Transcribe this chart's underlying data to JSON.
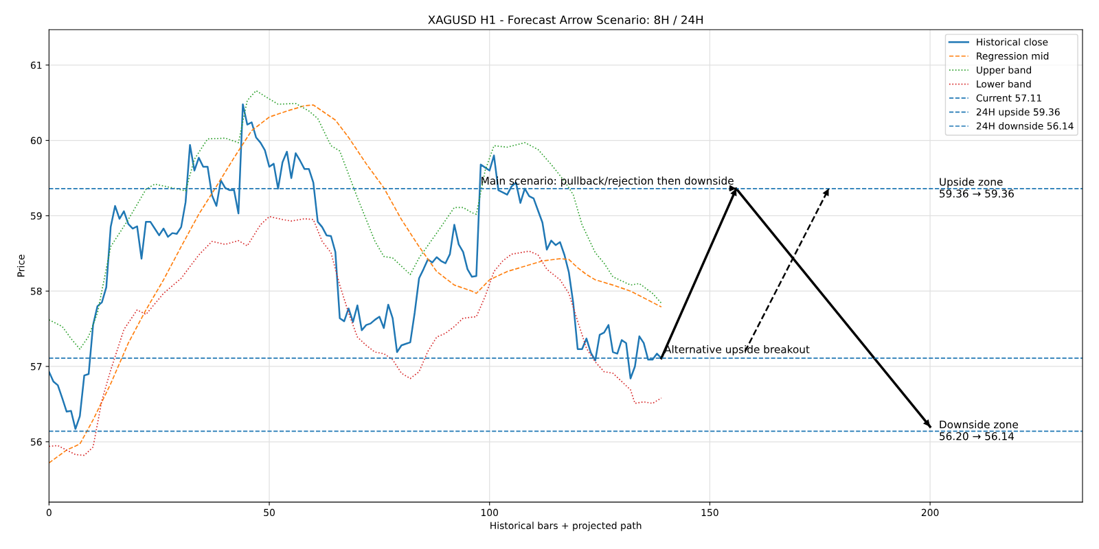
{
  "chart_data": {
    "type": "line",
    "title": "XAGUSD H1 - Forecast Arrow Scenario: 8H / 24H",
    "xlabel": "Historical bars + projected path",
    "ylabel": "Price",
    "x": [
      0,
      1,
      2,
      3,
      4,
      5,
      6,
      7,
      8,
      9,
      10,
      11,
      12,
      13,
      14,
      15,
      16,
      17,
      18,
      19,
      20,
      21,
      22,
      23,
      24,
      25,
      26,
      27,
      28,
      29,
      30,
      31,
      32,
      33,
      34,
      35,
      36,
      37,
      38,
      39,
      40,
      41,
      42,
      43,
      44,
      45,
      46,
      47,
      48,
      49,
      50,
      51,
      52,
      53,
      54,
      55,
      56,
      57,
      58,
      59,
      60,
      61,
      62,
      63,
      64,
      65,
      66,
      67,
      68,
      69,
      70,
      71,
      72,
      73,
      74,
      75,
      76,
      77,
      78,
      79,
      80,
      81,
      82,
      83,
      84,
      85,
      86,
      87,
      88,
      89,
      90,
      91,
      92,
      93,
      94,
      95,
      96,
      97,
      98,
      99,
      100,
      101,
      102,
      103,
      104,
      105,
      106,
      107,
      108,
      109,
      110,
      111,
      112,
      113,
      114,
      115,
      116,
      117,
      118,
      119,
      120,
      121,
      122,
      123,
      124,
      125,
      126,
      127,
      128,
      129,
      130,
      131,
      132,
      133,
      134,
      135,
      136,
      137,
      138,
      139
    ],
    "series": [
      {
        "name": "Historical close",
        "color": "#1f77b4",
        "line_style": "solid",
        "values": [
          56.93,
          56.8,
          56.75,
          56.58,
          56.4,
          56.41,
          56.17,
          56.34,
          56.88,
          56.9,
          57.55,
          57.8,
          57.85,
          58.05,
          58.85,
          59.13,
          58.96,
          59.06,
          58.89,
          58.83,
          58.86,
          58.43,
          58.92,
          58.92,
          58.83,
          58.74,
          58.83,
          58.72,
          58.77,
          58.76,
          58.85,
          59.18,
          59.94,
          59.6,
          59.77,
          59.65,
          59.65,
          59.27,
          59.13,
          59.47,
          59.37,
          59.34,
          59.34,
          59.03,
          60.48,
          60.21,
          60.24,
          60.04,
          59.97,
          59.87,
          59.65,
          59.69,
          59.36,
          59.71,
          59.85,
          59.5,
          59.83,
          59.73,
          59.62,
          59.62,
          59.44,
          58.92,
          58.85,
          58.74,
          58.73,
          58.52,
          57.64,
          57.6,
          57.77,
          57.59,
          57.81,
          57.48,
          57.55,
          57.57,
          57.62,
          57.66,
          57.51,
          57.82,
          57.64,
          57.19,
          57.28,
          57.3,
          57.32,
          57.71,
          58.17,
          58.29,
          58.42,
          58.38,
          58.45,
          58.4,
          58.37,
          58.49,
          58.88,
          58.62,
          58.52,
          58.29,
          58.19,
          58.2,
          59.68,
          59.64,
          59.6,
          59.8,
          59.34,
          59.31,
          59.28,
          59.39,
          59.44,
          59.17,
          59.36,
          59.26,
          59.23,
          59.07,
          58.91,
          58.55,
          58.67,
          58.61,
          58.65,
          58.48,
          58.25,
          57.84,
          57.23,
          57.23,
          57.37,
          57.18,
          57.08,
          57.42,
          57.45,
          57.55,
          57.19,
          57.17,
          57.35,
          57.31,
          56.84,
          57.0,
          57.4,
          57.31,
          57.09,
          57.09,
          57.17,
          57.11
        ]
      },
      {
        "name": "Regression mid",
        "color": "#ff7f0e",
        "line_style": "dashed",
        "x": [
          0,
          4,
          7,
          10,
          14,
          18,
          22,
          26,
          30,
          34,
          38,
          42,
          46,
          50,
          54,
          58,
          60,
          62,
          65,
          68,
          72,
          76,
          80,
          84,
          88,
          92,
          96,
          97,
          100,
          104,
          108,
          112,
          116,
          118,
          120,
          122,
          124,
          128,
          132,
          136,
          139
        ],
        "values": [
          55.72,
          55.89,
          55.97,
          56.29,
          56.77,
          57.31,
          57.75,
          58.15,
          58.59,
          59.02,
          59.39,
          59.77,
          60.13,
          60.31,
          60.39,
          60.46,
          60.47,
          60.39,
          60.27,
          60.04,
          59.69,
          59.37,
          58.95,
          58.59,
          58.26,
          58.08,
          58.0,
          57.97,
          58.15,
          58.26,
          58.33,
          58.4,
          58.43,
          58.42,
          58.31,
          58.22,
          58.15,
          58.08,
          58.0,
          57.88,
          57.79
        ]
      },
      {
        "name": "Upper band",
        "color": "#2ca02c",
        "line_style": "dotted",
        "x": [
          0,
          3,
          5,
          7,
          9,
          11,
          14,
          18,
          22,
          24,
          28,
          31,
          33,
          36,
          40,
          43,
          45,
          47,
          50,
          52,
          56,
          59,
          61,
          64,
          66,
          70,
          74,
          76,
          78,
          80,
          82,
          84,
          88,
          92,
          94,
          96,
          97,
          99,
          101,
          104,
          108,
          111,
          114,
          117,
          119,
          121,
          124,
          126,
          128,
          132,
          134,
          137,
          139
        ],
        "values": [
          57.62,
          57.53,
          57.37,
          57.23,
          57.4,
          57.71,
          58.59,
          58.95,
          59.35,
          59.42,
          59.37,
          59.33,
          59.75,
          60.02,
          60.03,
          59.97,
          60.53,
          60.66,
          60.55,
          60.48,
          60.49,
          60.39,
          60.29,
          59.93,
          59.86,
          59.24,
          58.66,
          58.46,
          58.44,
          58.33,
          58.22,
          58.44,
          58.77,
          59.11,
          59.11,
          59.04,
          59.02,
          59.6,
          59.93,
          59.91,
          59.97,
          59.88,
          59.68,
          59.46,
          59.28,
          58.88,
          58.51,
          58.37,
          58.19,
          58.08,
          58.1,
          57.97,
          57.84
        ]
      },
      {
        "name": "Lower band",
        "color": "#d62728",
        "line_style": "dotted",
        "x": [
          0,
          2,
          4,
          6,
          8,
          10,
          12,
          14,
          17,
          20,
          22,
          26,
          30,
          34,
          37,
          40,
          43,
          45,
          48,
          50,
          53,
          55,
          58,
          60,
          62,
          64,
          66,
          68,
          70,
          72,
          74,
          76,
          78,
          80,
          82,
          84,
          86,
          88,
          90,
          92,
          94,
          97,
          99,
          101,
          103,
          105,
          107,
          109,
          111,
          113,
          116,
          118,
          120,
          122,
          124,
          126,
          128,
          130,
          132,
          133,
          135,
          137,
          139
        ],
        "values": [
          55.94,
          55.95,
          55.89,
          55.83,
          55.82,
          55.93,
          56.55,
          56.95,
          57.49,
          57.75,
          57.69,
          57.97,
          58.17,
          58.48,
          58.66,
          58.62,
          58.67,
          58.6,
          58.88,
          58.99,
          58.95,
          58.93,
          58.96,
          58.95,
          58.66,
          58.51,
          58.08,
          57.71,
          57.39,
          57.28,
          57.19,
          57.17,
          57.09,
          56.91,
          56.84,
          56.93,
          57.2,
          57.39,
          57.44,
          57.53,
          57.64,
          57.66,
          57.93,
          58.26,
          58.4,
          58.49,
          58.51,
          58.53,
          58.48,
          58.29,
          58.15,
          57.97,
          57.6,
          57.24,
          57.06,
          56.93,
          56.91,
          56.8,
          56.69,
          56.51,
          56.53,
          56.51,
          56.58
        ]
      },
      {
        "color": "#000000",
        "line_style": "solid",
        "x": [
          139,
          156,
          200
        ],
        "values": [
          57.11,
          59.36,
          56.2
        ]
      },
      {
        "color": "#000000",
        "line_style": "dashed",
        "x": [
          158,
          177
        ],
        "values": [
          57.2,
          59.36
        ]
      }
    ],
    "ref_lines": [
      {
        "axis": "y",
        "value": 57.11,
        "label": "Current 57.11",
        "color": "#1f77b4",
        "line_style": "dashed"
      },
      {
        "axis": "y",
        "value": 59.36,
        "label": "24H upside 59.36",
        "color": "#1f77b4",
        "line_style": "dashed"
      },
      {
        "axis": "y",
        "value": 56.14,
        "label": "24H downside 56.14",
        "color": "#1f77b4",
        "line_style": "dashed"
      }
    ],
    "annotations": [
      {
        "text": "Main scenario: pullback/rejection then downside",
        "x": 156,
        "y": 59.36
      },
      {
        "text": "Alternative upside breakout",
        "x": 139,
        "y": 57.11
      },
      {
        "text": "Upside zone\n59.36 → 59.36",
        "x": 202,
        "y": 59.36
      },
      {
        "text": "Downside zone\n56.20 → 56.14",
        "x": 202,
        "y": 56.14
      }
    ],
    "xlim": [
      0,
      234.6
    ],
    "ylim": [
      55.2,
      61.47
    ],
    "xticks": [
      0,
      50,
      100,
      150,
      200
    ],
    "yticks": [
      56,
      57,
      58,
      59,
      60,
      61
    ],
    "grid": true,
    "legend": "top right"
  }
}
